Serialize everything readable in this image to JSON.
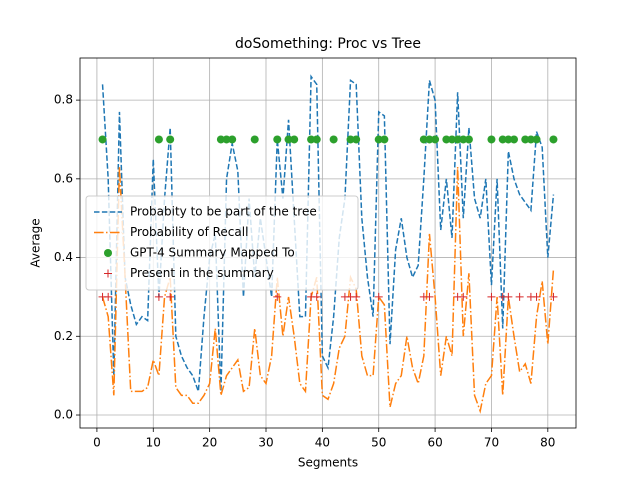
{
  "chart_data": {
    "type": "line",
    "title": "doSomething: Proc vs Tree",
    "xlabel": "Segments",
    "ylabel": "Average",
    "xlim": [
      -3,
      85
    ],
    "ylim": [
      -0.033,
      0.907
    ],
    "xticks": [
      0,
      10,
      20,
      30,
      40,
      50,
      60,
      70,
      80
    ],
    "yticks": [
      {
        "value": 0,
        "label": "0.0"
      },
      0.2,
      0.4,
      0.6,
      0.8
    ],
    "grid": true,
    "legend": "center left",
    "series": [
      {
        "name": "Probabity to be part of the tree",
        "color": "#1f77b4",
        "linestyle": "dashed",
        "x": [
          1,
          2,
          3,
          4,
          5,
          6,
          7,
          8,
          9,
          10,
          11,
          12,
          13,
          14,
          15,
          16,
          17,
          18,
          19,
          20,
          21,
          22,
          23,
          24,
          25,
          26,
          27,
          28,
          29,
          30,
          31,
          32,
          33,
          34,
          35,
          36,
          37,
          38,
          39,
          40,
          41,
          42,
          43,
          44,
          45,
          46,
          47,
          48,
          49,
          50,
          51,
          52,
          53,
          54,
          55,
          56,
          57,
          58,
          59,
          60,
          61,
          62,
          63,
          64,
          65,
          66,
          67,
          68,
          69,
          70,
          71,
          72,
          73,
          74,
          75,
          76,
          77,
          78,
          79,
          80,
          81
        ],
        "values": [
          0.84,
          0.6,
          0.1,
          0.77,
          0.35,
          0.28,
          0.23,
          0.25,
          0.24,
          0.65,
          0.3,
          0.55,
          0.73,
          0.2,
          0.15,
          0.12,
          0.1,
          0.06,
          0.25,
          0.4,
          0.46,
          0.06,
          0.6,
          0.69,
          0.62,
          0.3,
          0.55,
          0.35,
          0.5,
          0.4,
          0.3,
          0.7,
          0.55,
          0.75,
          0.5,
          0.25,
          0.25,
          0.86,
          0.84,
          0.15,
          0.12,
          0.25,
          0.45,
          0.55,
          0.85,
          0.84,
          0.5,
          0.35,
          0.25,
          0.77,
          0.76,
          0.18,
          0.42,
          0.5,
          0.4,
          0.35,
          0.38,
          0.6,
          0.85,
          0.8,
          0.47,
          0.6,
          0.45,
          0.82,
          0.5,
          0.73,
          0.55,
          0.5,
          0.6,
          0.33,
          0.6,
          0.22,
          0.67,
          0.6,
          0.56,
          0.54,
          0.52,
          0.72,
          0.68,
          0.4,
          0.56
        ]
      },
      {
        "name": "Probability of Recall",
        "color": "#ff7f0e",
        "linestyle": "dashdot",
        "x": [
          1,
          2,
          3,
          4,
          5,
          6,
          7,
          8,
          9,
          10,
          11,
          12,
          13,
          14,
          15,
          16,
          17,
          18,
          19,
          20,
          21,
          22,
          23,
          24,
          25,
          26,
          27,
          28,
          29,
          30,
          31,
          32,
          33,
          34,
          35,
          36,
          37,
          38,
          39,
          40,
          41,
          42,
          43,
          44,
          45,
          46,
          47,
          48,
          49,
          50,
          51,
          52,
          53,
          54,
          55,
          56,
          57,
          58,
          59,
          60,
          61,
          62,
          63,
          64,
          65,
          66,
          67,
          68,
          69,
          70,
          71,
          72,
          73,
          74,
          75,
          76,
          77,
          78,
          79,
          80,
          81
        ],
        "values": [
          0.3,
          0.25,
          0.05,
          0.63,
          0.35,
          0.06,
          0.06,
          0.06,
          0.07,
          0.14,
          0.1,
          0.3,
          0.35,
          0.07,
          0.05,
          0.05,
          0.03,
          0.03,
          0.05,
          0.08,
          0.22,
          0.05,
          0.1,
          0.12,
          0.14,
          0.06,
          0.07,
          0.22,
          0.1,
          0.08,
          0.15,
          0.35,
          0.2,
          0.3,
          0.2,
          0.08,
          0.06,
          0.3,
          0.35,
          0.05,
          0.04,
          0.08,
          0.17,
          0.2,
          0.35,
          0.32,
          0.15,
          0.1,
          0.1,
          0.3,
          0.28,
          0.02,
          0.08,
          0.1,
          0.2,
          0.12,
          0.08,
          0.15,
          0.46,
          0.3,
          0.1,
          0.2,
          0.15,
          0.63,
          0.2,
          0.36,
          0.05,
          0.01,
          0.08,
          0.1,
          0.3,
          0.05,
          0.3,
          0.2,
          0.11,
          0.13,
          0.08,
          0.25,
          0.34,
          0.18,
          0.37
        ]
      },
      {
        "name": "GPT-4 Summary Mapped To",
        "color": "#2ca02c",
        "marker": "o",
        "x": [
          1,
          11,
          13,
          22,
          23,
          24,
          28,
          32,
          34,
          35,
          38,
          39,
          42,
          45,
          46,
          50,
          51,
          58,
          59,
          60,
          62,
          63,
          64,
          65,
          66,
          70,
          72,
          73,
          74,
          76,
          77,
          78,
          81
        ],
        "values": [
          0.7,
          0.7,
          0.7,
          0.7,
          0.7,
          0.7,
          0.7,
          0.7,
          0.7,
          0.7,
          0.7,
          0.7,
          0.7,
          0.7,
          0.7,
          0.7,
          0.7,
          0.7,
          0.7,
          0.7,
          0.7,
          0.7,
          0.7,
          0.7,
          0.7,
          0.7,
          0.7,
          0.7,
          0.7,
          0.7,
          0.7,
          0.7,
          0.7
        ]
      },
      {
        "name": "Present in the summary",
        "color": "#d62728",
        "marker": "+",
        "x": [
          1,
          2,
          11,
          13,
          32,
          38,
          39,
          44,
          45,
          46,
          50,
          58,
          59,
          64,
          65,
          70,
          72,
          73,
          75,
          77,
          78,
          81
        ],
        "values": [
          0.3,
          0.3,
          0.3,
          0.3,
          0.3,
          0.3,
          0.3,
          0.3,
          0.3,
          0.3,
          0.3,
          0.3,
          0.3,
          0.3,
          0.3,
          0.3,
          0.3,
          0.3,
          0.3,
          0.3,
          0.3,
          0.3
        ]
      }
    ]
  }
}
